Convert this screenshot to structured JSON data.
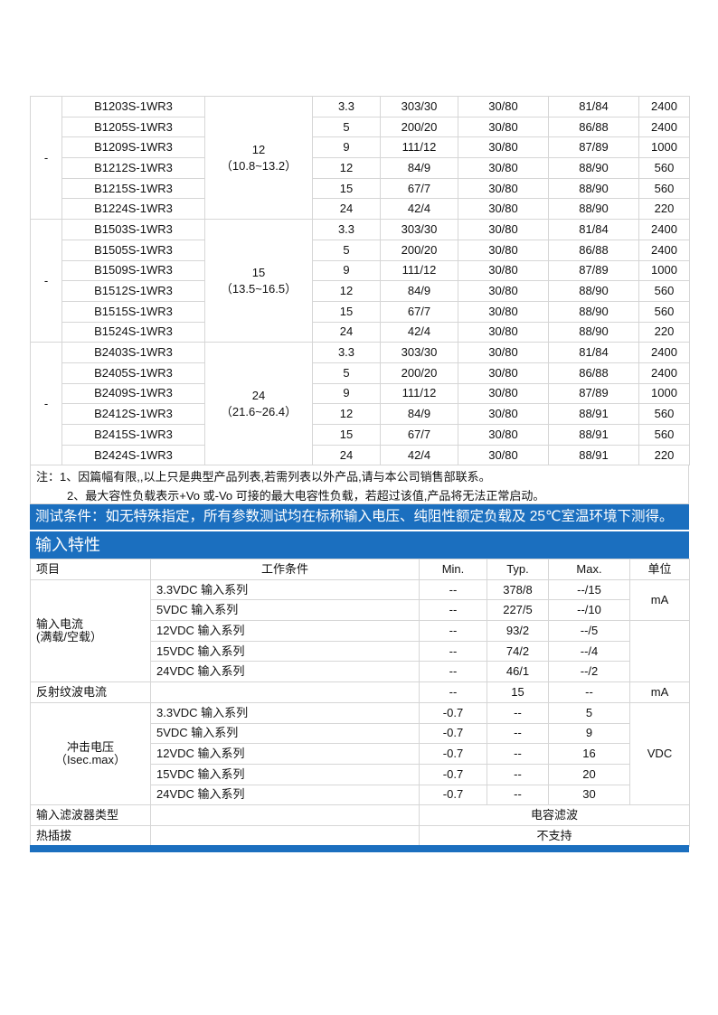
{
  "models_table": {
    "groups": [
      {
        "dash": "-",
        "input": "12",
        "range": "（10.8~13.2）",
        "rows": [
          [
            "B1203S-1WR3",
            "3.3",
            "303/30",
            "30/80",
            "81/84",
            "2400"
          ],
          [
            "B1205S-1WR3",
            "5",
            "200/20",
            "30/80",
            "86/88",
            "2400"
          ],
          [
            "B1209S-1WR3",
            "9",
            "111/12",
            "30/80",
            "87/89",
            "1000"
          ],
          [
            "B1212S-1WR3",
            "12",
            "84/9",
            "30/80",
            "88/90",
            "560"
          ],
          [
            "B1215S-1WR3",
            "15",
            "67/7",
            "30/80",
            "88/90",
            "560"
          ],
          [
            "B1224S-1WR3",
            "24",
            "42/4",
            "30/80",
            "88/90",
            "220"
          ]
        ]
      },
      {
        "dash": "-",
        "input": "15",
        "range": "（13.5~16.5）",
        "rows": [
          [
            "B1503S-1WR3",
            "3.3",
            "303/30",
            "30/80",
            "81/84",
            "2400"
          ],
          [
            "B1505S-1WR3",
            "5",
            "200/20",
            "30/80",
            "86/88",
            "2400"
          ],
          [
            "B1509S-1WR3",
            "9",
            "111/12",
            "30/80",
            "87/89",
            "1000"
          ],
          [
            "B1512S-1WR3",
            "12",
            "84/9",
            "30/80",
            "88/90",
            "560"
          ],
          [
            "B1515S-1WR3",
            "15",
            "67/7",
            "30/80",
            "88/90",
            "560"
          ],
          [
            "B1524S-1WR3",
            "24",
            "42/4",
            "30/80",
            "88/90",
            "220"
          ]
        ]
      },
      {
        "dash": "-",
        "input": "24",
        "range": "（21.6~26.4）",
        "rows": [
          [
            "B2403S-1WR3",
            "3.3",
            "303/30",
            "30/80",
            "81/84",
            "2400"
          ],
          [
            "B2405S-1WR3",
            "5",
            "200/20",
            "30/80",
            "86/88",
            "2400"
          ],
          [
            "B2409S-1WR3",
            "9",
            "111/12",
            "30/80",
            "87/89",
            "1000"
          ],
          [
            "B2412S-1WR3",
            "12",
            "84/9",
            "30/80",
            "88/91",
            "560"
          ],
          [
            "B2415S-1WR3",
            "15",
            "67/7",
            "30/80",
            "88/91",
            "560"
          ],
          [
            "B2424S-1WR3",
            "24",
            "42/4",
            "30/80",
            "88/91",
            "220"
          ]
        ]
      }
    ]
  },
  "notes": {
    "line1": "注：1、因篇幅有限,,以上只是典型产品列表,若需列表以外产品,请与本公司销售部联系。",
    "line2": "2、最大容性负载表示+Vo 或-Vo 可接的最大电容性负载，若超过该值,产品将无法正常启动。"
  },
  "test_condition": "测试条件：如无特殊指定，所有参数测试均在标称输入电压、纯阻性额定负载及 25℃室温环境下测得。",
  "section_title": "输入特性",
  "input_table": {
    "headers": [
      "项目",
      "工作条件",
      "Min.",
      "Typ.",
      "Max.",
      "单位"
    ],
    "current": {
      "item": "输入电流",
      "item2": "(满载/空载）",
      "unit": "mA",
      "rows": [
        [
          "3.3VDC 输入系列",
          "--",
          "378/8",
          "--/15"
        ],
        [
          "5VDC 输入系列",
          "--",
          "227/5",
          "--/10"
        ],
        [
          "12VDC 输入系列",
          "--",
          "93/2",
          "--/5"
        ],
        [
          "15VDC 输入系列",
          "--",
          "74/2",
          "--/4"
        ],
        [
          "24VDC 输入系列",
          "--",
          "46/1",
          "--/2"
        ]
      ]
    },
    "ripple": {
      "item": "反射纹波电流",
      "min": "--",
      "typ": "15",
      "max": "--",
      "unit": "mA"
    },
    "surge": {
      "item": "冲击电压",
      "item2": "（Isec.max）",
      "unit": "VDC",
      "rows": [
        [
          "3.3VDC 输入系列",
          "-0.7",
          "--",
          "5"
        ],
        [
          "5VDC 输入系列",
          "-0.7",
          "--",
          "9"
        ],
        [
          "12VDC 输入系列",
          "-0.7",
          "--",
          "16"
        ],
        [
          "15VDC 输入系列",
          "-0.7",
          "--",
          "20"
        ],
        [
          "24VDC 输入系列",
          "-0.7",
          "--",
          "30"
        ]
      ]
    },
    "filter": {
      "item": "输入滤波器类型",
      "value": "电容滤波"
    },
    "hotplug": {
      "item": "热插拔",
      "value": "不支持"
    }
  },
  "colors": {
    "accent": "#1b6fbf",
    "grid": "#d6d6d6"
  }
}
